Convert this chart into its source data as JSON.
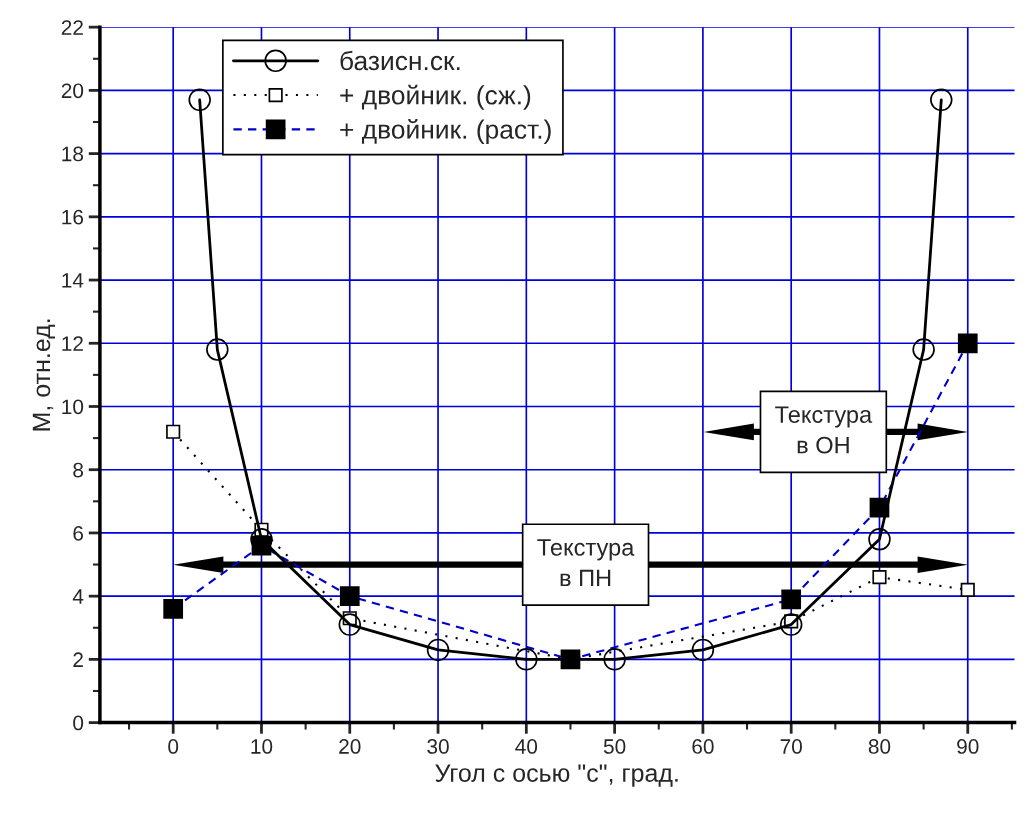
{
  "chart_data": {
    "type": "line",
    "xlabel": "Угол с осью \"с\", град.",
    "ylabel": "M, отн.ед.",
    "xlim": [
      -8.3,
      95.3
    ],
    "xticks": [
      0,
      10,
      20,
      30,
      40,
      50,
      60,
      70,
      80,
      90
    ],
    "ylim": [
      0,
      22
    ],
    "yticks": [
      0,
      2,
      4,
      6,
      8,
      10,
      12,
      14,
      16,
      18,
      20,
      22
    ],
    "grid": true,
    "legend": "top left",
    "series": [
      {
        "name": "базисн.ск.",
        "color": "#000000",
        "marker": "circle",
        "line_style": "solid",
        "x": [
          3,
          5,
          10,
          20,
          30,
          40,
          50,
          60,
          70,
          80,
          85,
          87
        ],
        "values": [
          19.7,
          11.8,
          5.8,
          3.1,
          2.3,
          2.0,
          2.0,
          2.3,
          3.1,
          5.8,
          11.8,
          19.7
        ]
      },
      {
        "name": "+ двойник. (сж.)",
        "color": "#000000",
        "marker": "square",
        "line_style": "dotted",
        "x": [
          0,
          10,
          20,
          45,
          70,
          80,
          90
        ],
        "values": [
          9.2,
          6.1,
          3.3,
          2.0,
          3.2,
          4.6,
          4.2
        ]
      },
      {
        "name": "+ двойник. (раст.)",
        "color": "#0000cc",
        "marker": "square",
        "line_style": "dashed",
        "x": [
          0,
          10,
          20,
          45,
          70,
          80,
          90
        ],
        "values": [
          3.6,
          5.6,
          4.0,
          2.0,
          3.9,
          6.8,
          12.0
        ]
      }
    ],
    "annotations": [
      "Текстура\nв ПН",
      "Текстура\nв ОН"
    ]
  }
}
